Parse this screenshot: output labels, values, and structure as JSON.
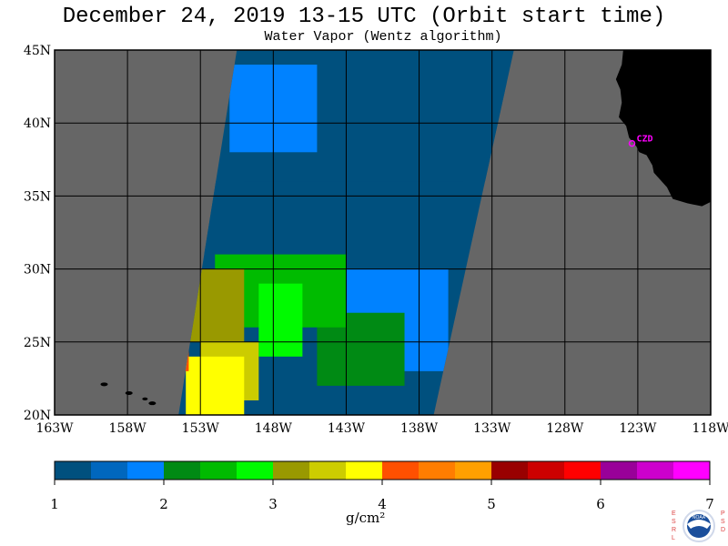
{
  "header": {
    "title": "December 24, 2019  13-15 UTC  (Orbit start time)",
    "subtitle": "Water Vapor (Wentz algorithm)"
  },
  "map": {
    "station_label": "CZD",
    "colors": {
      "land": "#000000",
      "no_data": "#666666",
      "grid": "#000000",
      "station": "#ff00ff"
    }
  },
  "colorbar": {
    "tick_labels": [
      "1",
      "2",
      "3",
      "4",
      "5",
      "6",
      "7"
    ],
    "unit_label": "g/cm²",
    "colors": [
      "#00507e",
      "#0067be",
      "#0082ff",
      "#008a14",
      "#00bb00",
      "#00fa00",
      "#999900",
      "#cccc00",
      "#ffff00",
      "#ff5000",
      "#ff7d00",
      "#ffa000",
      "#990000",
      "#cc0000",
      "#ff0000",
      "#990099",
      "#cc00cc",
      "#ff00ff"
    ]
  },
  "logo": {
    "text": "NOAA",
    "left_letters": "ESRL",
    "right_letters": "PSD"
  },
  "chart_data": {
    "type": "heatmap",
    "title": "December 24, 2019  13-15 UTC  (Orbit start time)",
    "subtitle": "Water Vapor (Wentz algorithm)",
    "xlabel": "",
    "ylabel": "",
    "x_tick_labels": [
      "163W",
      "158W",
      "153W",
      "148W",
      "143W",
      "138W",
      "133W",
      "128W",
      "123W",
      "118W"
    ],
    "x_values": [
      -163,
      -158,
      -153,
      -148,
      -143,
      -138,
      -133,
      -128,
      -123,
      -118
    ],
    "y_tick_labels": [
      "20N",
      "25N",
      "30N",
      "35N",
      "40N",
      "45N"
    ],
    "y_values": [
      20,
      25,
      30,
      35,
      40,
      45
    ],
    "xlim": [
      -163,
      -118
    ],
    "ylim": [
      20,
      45
    ],
    "grid": true,
    "colorbar_range": [
      1,
      7
    ],
    "colorbar_unit": "g/cm²",
    "station": {
      "name": "CZD",
      "lon": -123.4,
      "lat": 38.6
    },
    "swath_corners_lonlat": [
      [
        -150.5,
        45
      ],
      [
        -131.5,
        45
      ],
      [
        -137,
        20
      ],
      [
        -154.5,
        20
      ]
    ],
    "water_vapor_regions": [
      {
        "value": 1.1,
        "lat_range": [
          36,
          45
        ],
        "lon_range": [
          -150,
          -132
        ]
      },
      {
        "value": 1.7,
        "lat_range": [
          38,
          44
        ],
        "lon_range": [
          -151,
          -145
        ]
      },
      {
        "value": 1.3,
        "lat_range": [
          31,
          36
        ],
        "lon_range": [
          -153,
          -135
        ]
      },
      {
        "value": 1.7,
        "lat_range": [
          23,
          30
        ],
        "lon_range": [
          -143,
          -136
        ]
      },
      {
        "value": 2.3,
        "lat_range": [
          22,
          27
        ],
        "lon_range": [
          -145,
          -139
        ]
      },
      {
        "value": 2.5,
        "lat_range": [
          26,
          31
        ],
        "lon_range": [
          -152,
          -143
        ]
      },
      {
        "value": 2.9,
        "lat_range": [
          24,
          29
        ],
        "lon_range": [
          -149,
          -146
        ]
      },
      {
        "value": 3.1,
        "lat_range": [
          25,
          30
        ],
        "lon_range": [
          -154,
          -150
        ]
      },
      {
        "value": 3.5,
        "lat_range": [
          21,
          25
        ],
        "lon_range": [
          -153,
          -149
        ]
      },
      {
        "value": 3.9,
        "lat_range": [
          20,
          24
        ],
        "lon_range": [
          -154,
          -150
        ]
      },
      {
        "value": 4.3,
        "lat_range": [
          23,
          25.5
        ],
        "lon_range": [
          -154.5,
          -153.8
        ]
      }
    ]
  }
}
